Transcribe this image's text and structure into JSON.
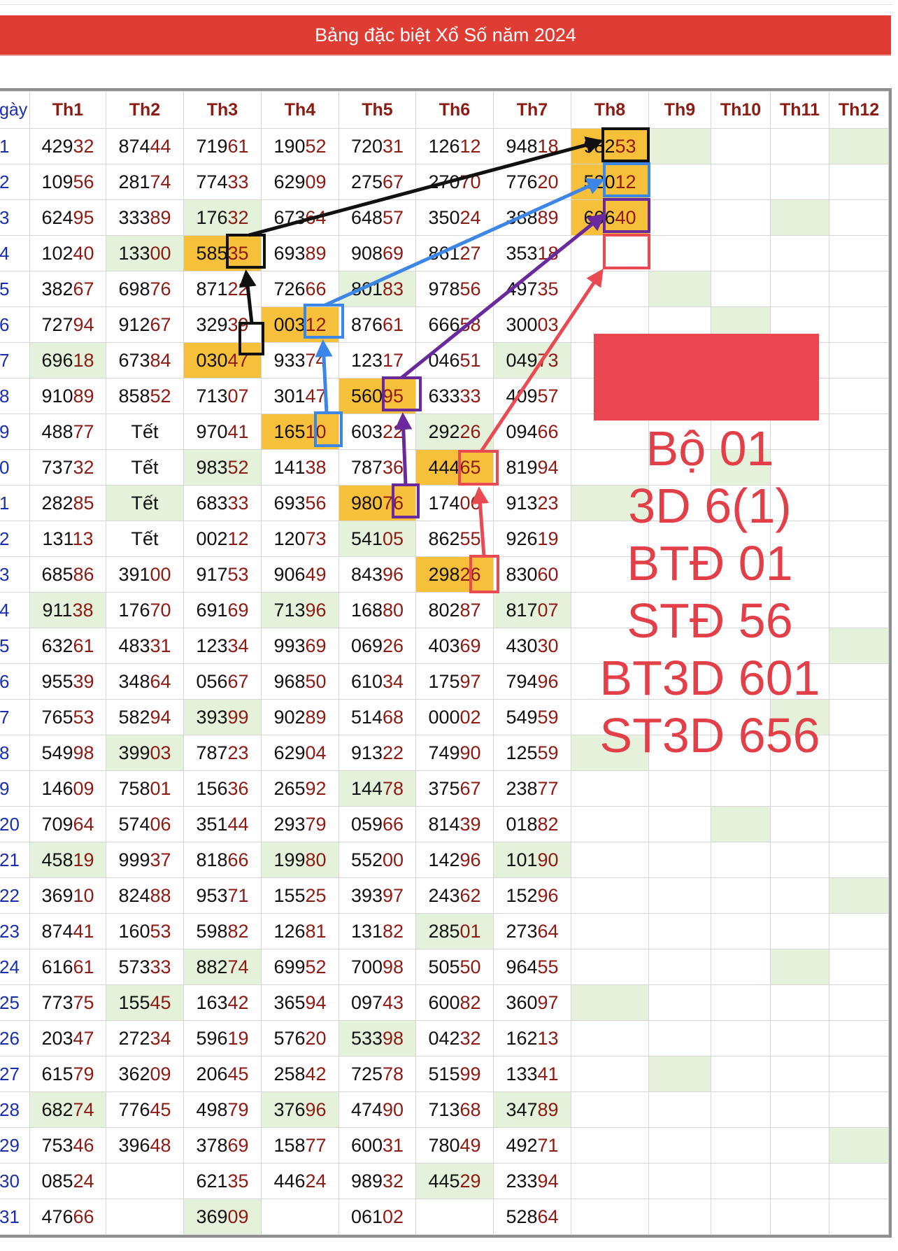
{
  "title": "Bảng đặc biệt Xổ Số năm 2024",
  "header": {
    "day_label": "gày",
    "months": [
      "Th1",
      "Th2",
      "Th3",
      "Th4",
      "Th5",
      "Th6",
      "Th7",
      "Th8",
      "Th9",
      "Th10",
      "Th11",
      "Th12"
    ]
  },
  "day_labels": [
    "1",
    "2",
    "3",
    "4",
    "5",
    "6",
    "7",
    "8",
    "9",
    "0",
    "1",
    "2",
    "3",
    "4",
    "5",
    "6",
    "7",
    "8",
    "9",
    "20",
    "21",
    "22",
    "23",
    "24",
    "25",
    "26",
    "27",
    "28",
    "29",
    "30",
    "31"
  ],
  "rows": [
    [
      "42932",
      "87444",
      "71961",
      "19052",
      "72031",
      "12612",
      "94818",
      "98253",
      "",
      "",
      "",
      ""
    ],
    [
      "10956",
      "28174",
      "77433",
      "62909",
      "27567",
      "27070",
      "77620",
      "52012",
      "",
      "",
      "",
      ""
    ],
    [
      "62495",
      "33389",
      "17632",
      "67364",
      "64857",
      "35024",
      "38889",
      "60640",
      "",
      "",
      "",
      ""
    ],
    [
      "10240",
      "13300",
      "58535",
      "69389",
      "90869",
      "86127",
      "35318",
      "",
      "",
      "",
      "",
      ""
    ],
    [
      "38267",
      "69876",
      "87122",
      "72666",
      "80183",
      "97856",
      "49735",
      "",
      "",
      "",
      "",
      ""
    ],
    [
      "72794",
      "91267",
      "32939",
      "00312",
      "87661",
      "66658",
      "30003",
      "",
      "",
      "",
      "",
      ""
    ],
    [
      "69618",
      "67384",
      "03047",
      "93374",
      "12317",
      "04651",
      "04973",
      "",
      "",
      "",
      "",
      ""
    ],
    [
      "91089",
      "85852",
      "71307",
      "30147",
      "56095",
      "63333",
      "40957",
      "",
      "",
      "",
      "",
      ""
    ],
    [
      "48877",
      "Tết",
      "97041",
      "16510",
      "60322",
      "29226",
      "09466",
      "",
      "",
      "",
      "",
      ""
    ],
    [
      "73732",
      "Tết",
      "98352",
      "14138",
      "78736",
      "44465",
      "81994",
      "",
      "",
      "",
      "",
      ""
    ],
    [
      "28285",
      "Tết",
      "68333",
      "69356",
      "98076",
      "17406",
      "91323",
      "",
      "",
      "",
      "",
      ""
    ],
    [
      "13113",
      "Tết",
      "00212",
      "12073",
      "54105",
      "86255",
      "92619",
      "",
      "",
      "",
      "",
      ""
    ],
    [
      "68586",
      "39100",
      "91753",
      "90649",
      "84396",
      "29826",
      "83060",
      "",
      "",
      "",
      "",
      ""
    ],
    [
      "91138",
      "17670",
      "69169",
      "71396",
      "16880",
      "80287",
      "81707",
      "",
      "",
      "",
      "",
      ""
    ],
    [
      "63261",
      "48331",
      "12334",
      "99369",
      "06926",
      "40369",
      "43030",
      "",
      "",
      "",
      "",
      ""
    ],
    [
      "95539",
      "34864",
      "05667",
      "96850",
      "61034",
      "17597",
      "79496",
      "",
      "",
      "",
      "",
      ""
    ],
    [
      "76553",
      "58294",
      "39399",
      "90289",
      "51468",
      "00002",
      "54959",
      "",
      "",
      "",
      "",
      ""
    ],
    [
      "54998",
      "39903",
      "78723",
      "62904",
      "91322",
      "74990",
      "12559",
      "",
      "",
      "",
      "",
      ""
    ],
    [
      "14609",
      "75801",
      "15636",
      "26592",
      "14478",
      "37567",
      "23877",
      "",
      "",
      "",
      "",
      ""
    ],
    [
      "70964",
      "57406",
      "35144",
      "29379",
      "05966",
      "81439",
      "01882",
      "",
      "",
      "",
      "",
      ""
    ],
    [
      "45819",
      "99937",
      "81866",
      "19980",
      "55200",
      "14296",
      "10190",
      "",
      "",
      "",
      "",
      ""
    ],
    [
      "36910",
      "82488",
      "95371",
      "15525",
      "39397",
      "24362",
      "15296",
      "",
      "",
      "",
      "",
      ""
    ],
    [
      "87441",
      "16053",
      "59882",
      "12681",
      "13182",
      "28501",
      "27364",
      "",
      "",
      "",
      "",
      ""
    ],
    [
      "61661",
      "57333",
      "88274",
      "69952",
      "70098",
      "50550",
      "96455",
      "",
      "",
      "",
      "",
      ""
    ],
    [
      "77375",
      "15545",
      "16342",
      "36594",
      "09743",
      "60082",
      "36097",
      "",
      "",
      "",
      "",
      ""
    ],
    [
      "20347",
      "27234",
      "59619",
      "57620",
      "53398",
      "04232",
      "16213",
      "",
      "",
      "",
      "",
      ""
    ],
    [
      "61579",
      "36209",
      "20645",
      "25842",
      "72578",
      "51599",
      "13341",
      "",
      "",
      "",
      "",
      ""
    ],
    [
      "68274",
      "77645",
      "49879",
      "37696",
      "47490",
      "71368",
      "34789",
      "",
      "",
      "",
      "",
      ""
    ],
    [
      "75346",
      "39648",
      "37869",
      "15877",
      "60031",
      "78049",
      "49271",
      "",
      "",
      "",
      "",
      ""
    ],
    [
      "08524",
      "",
      "62135",
      "44624",
      "98932",
      "44529",
      "23394",
      "",
      "",
      "",
      "",
      ""
    ],
    [
      "47666",
      "",
      "36909",
      "",
      "06102",
      "",
      "52864",
      "",
      "",
      "",
      "",
      ""
    ]
  ],
  "green_cells": [
    [
      0,
      8
    ],
    [
      0,
      11
    ],
    [
      2,
      2
    ],
    [
      2,
      10
    ],
    [
      3,
      1
    ],
    [
      4,
      4
    ],
    [
      4,
      8
    ],
    [
      5,
      9
    ],
    [
      6,
      0
    ],
    [
      6,
      6
    ],
    [
      8,
      5
    ],
    [
      9,
      2
    ],
    [
      9,
      9
    ],
    [
      10,
      1
    ],
    [
      10,
      7
    ],
    [
      11,
      4
    ],
    [
      13,
      0
    ],
    [
      13,
      3
    ],
    [
      13,
      6
    ],
    [
      14,
      11
    ],
    [
      16,
      2
    ],
    [
      16,
      10
    ],
    [
      17,
      1
    ],
    [
      17,
      7
    ],
    [
      18,
      4
    ],
    [
      19,
      9
    ],
    [
      20,
      0
    ],
    [
      20,
      3
    ],
    [
      20,
      6
    ],
    [
      21,
      11
    ],
    [
      22,
      5
    ],
    [
      23,
      2
    ],
    [
      23,
      10
    ],
    [
      24,
      1
    ],
    [
      24,
      7
    ],
    [
      25,
      4
    ],
    [
      26,
      8
    ],
    [
      27,
      0
    ],
    [
      27,
      3
    ],
    [
      27,
      6
    ],
    [
      28,
      11
    ],
    [
      29,
      5
    ],
    [
      30,
      2
    ]
  ],
  "yellow_cells": [
    [
      0,
      7
    ],
    [
      1,
      7
    ],
    [
      2,
      7
    ],
    [
      3,
      2
    ],
    [
      5,
      3
    ],
    [
      6,
      2
    ],
    [
      7,
      4
    ],
    [
      8,
      3
    ],
    [
      9,
      5
    ],
    [
      10,
      4
    ],
    [
      12,
      5
    ]
  ],
  "annotation": {
    "lines": [
      "Bộ 01",
      "3D 6(1)",
      "BTĐ 01",
      "STĐ 56",
      "BT3D 601",
      "ST3D 656"
    ],
    "colors": {
      "black": "#111111",
      "blue": "#3b86e6",
      "purple": "#6a2a9e",
      "red": "#ea4a52"
    }
  }
}
